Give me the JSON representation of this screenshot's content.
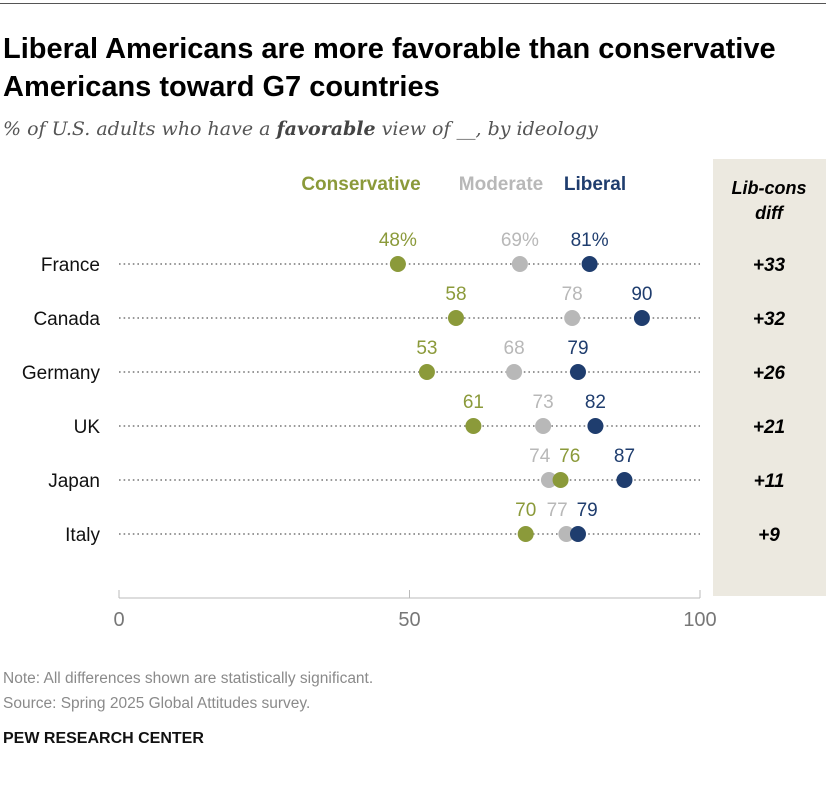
{
  "header": {
    "title": "Liberal Americans are more favorable than conservative Americans toward G7 countries",
    "subtitle_pre": "% of U.S. adults who have a ",
    "subtitle_bold": "favorable",
    "subtitle_post": " view of __, by ideology"
  },
  "footer": {
    "note": "Note: All differences shown are statistically significant.",
    "source": "Source: Spring 2025 Global Attitudes survey.",
    "credit": "PEW RESEARCH CENTER"
  },
  "colors": {
    "Conservative": "#8b9a3a",
    "Moderate": "#b8b8b8",
    "Liberal": "#1f3d6e",
    "diff_panel": "#ece9e0"
  },
  "chart_data": {
    "type": "dot",
    "xlim": [
      0,
      100
    ],
    "xticks": [
      0,
      50,
      100
    ],
    "xtick_labels": [
      "0",
      "50",
      "100"
    ],
    "diff_header": [
      "Lib-cons",
      "diff"
    ],
    "series_names": [
      "Conservative",
      "Moderate",
      "Liberal"
    ],
    "categories": [
      "France",
      "Canada",
      "Germany",
      "UK",
      "Japan",
      "Italy"
    ],
    "series": [
      {
        "name": "Conservative",
        "values": [
          48,
          58,
          53,
          61,
          76,
          70
        ]
      },
      {
        "name": "Moderate",
        "values": [
          69,
          78,
          68,
          73,
          74,
          77
        ]
      },
      {
        "name": "Liberal",
        "values": [
          81,
          90,
          79,
          82,
          87,
          79
        ]
      }
    ],
    "value_labels": [
      {
        "Conservative": "48%",
        "Moderate": "69%",
        "Liberal": "81%"
      },
      {
        "Conservative": "58",
        "Moderate": "78",
        "Liberal": "90"
      },
      {
        "Conservative": "53",
        "Moderate": "68",
        "Liberal": "79"
      },
      {
        "Conservative": "61",
        "Moderate": "73",
        "Liberal": "82"
      },
      {
        "Conservative": "76",
        "Moderate": "74",
        "Liberal": "87"
      },
      {
        "Conservative": "70",
        "Moderate": "77",
        "Liberal": "79"
      }
    ],
    "diffs": [
      "+33",
      "+32",
      "+26",
      "+21",
      "+11",
      "+9"
    ]
  }
}
